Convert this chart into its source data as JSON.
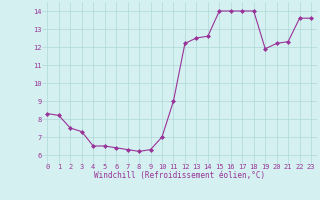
{
  "x": [
    0,
    1,
    2,
    3,
    4,
    5,
    6,
    7,
    8,
    9,
    10,
    11,
    12,
    13,
    14,
    15,
    16,
    17,
    18,
    19,
    20,
    21,
    22,
    23
  ],
  "y": [
    8.3,
    8.2,
    7.5,
    7.3,
    6.5,
    6.5,
    6.4,
    6.3,
    6.2,
    6.3,
    7.0,
    9.0,
    12.2,
    12.5,
    12.6,
    14.0,
    14.0,
    14.0,
    14.0,
    11.9,
    12.2,
    12.3,
    13.6,
    13.6
  ],
  "line_color": "#993399",
  "marker_color": "#993399",
  "bg_color": "#d4f0f0",
  "grid_color": "#b0d8d8",
  "xlabel": "Windchill (Refroidissement éolien,°C)",
  "xlabel_color": "#993399",
  "tick_color": "#993399",
  "xlim": [
    -0.5,
    23.5
  ],
  "ylim": [
    5.5,
    14.5
  ],
  "yticks": [
    6,
    7,
    8,
    9,
    10,
    11,
    12,
    13,
    14
  ],
  "xticks": [
    0,
    1,
    2,
    3,
    4,
    5,
    6,
    7,
    8,
    9,
    10,
    11,
    12,
    13,
    14,
    15,
    16,
    17,
    18,
    19,
    20,
    21,
    22,
    23
  ],
  "tick_fontsize": 5.0,
  "xlabel_fontsize": 5.5
}
